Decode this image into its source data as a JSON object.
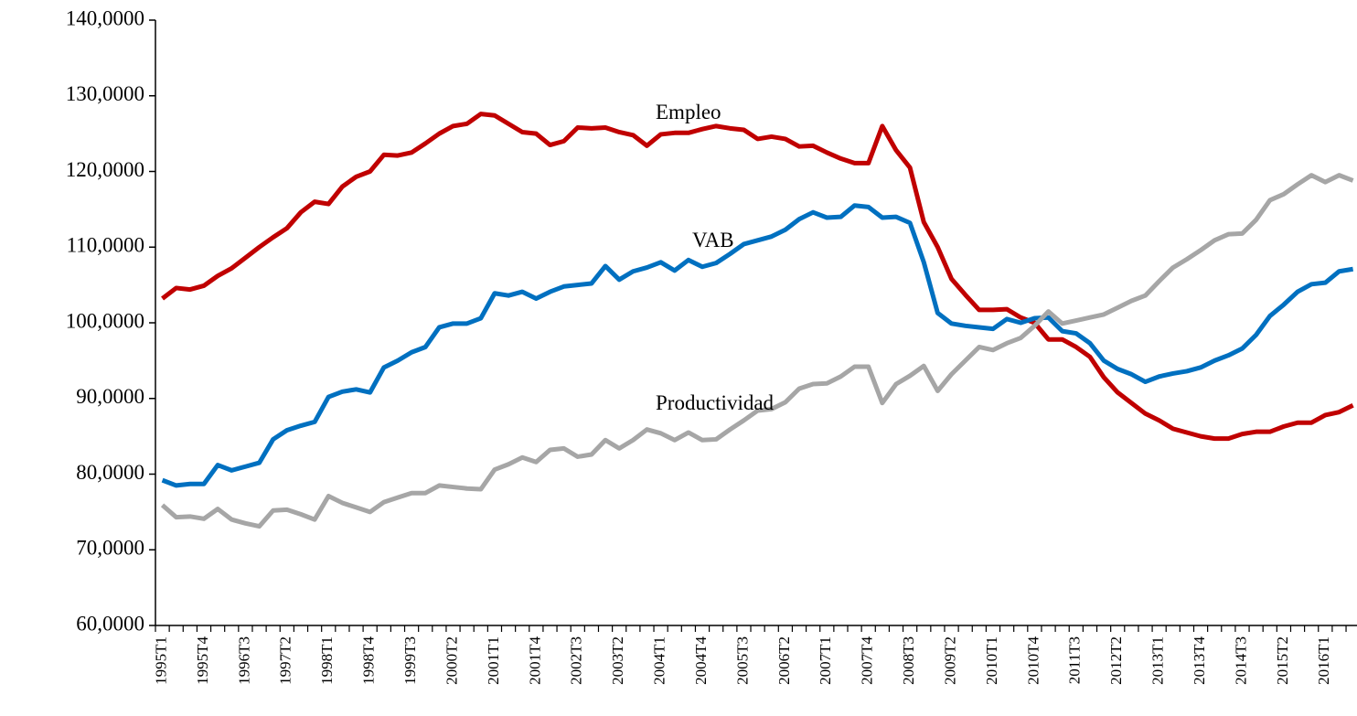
{
  "chart_data": {
    "type": "line",
    "categories": [
      "1995T1",
      null,
      null,
      "1995T4",
      null,
      null,
      "1996T3",
      null,
      null,
      "1997T2",
      null,
      null,
      "1998T1",
      null,
      null,
      "1998T4",
      null,
      null,
      "1999T3",
      null,
      null,
      "2000T2",
      null,
      null,
      "2001T1",
      null,
      null,
      "2001T4",
      null,
      null,
      "2002T3",
      null,
      null,
      "2003T2",
      null,
      null,
      "2004T1",
      null,
      null,
      "2004T4",
      null,
      null,
      "2005T3",
      null,
      null,
      "2006T2",
      null,
      null,
      "2007T1",
      null,
      null,
      "2007T4",
      null,
      null,
      "2008T3",
      null,
      null,
      "2009T2",
      null,
      null,
      "2010T1",
      null,
      null,
      "2010T4",
      null,
      null,
      "2011T3",
      null,
      null,
      "2012T2",
      null,
      null,
      "2013T1",
      null,
      null,
      "2013T4",
      null,
      null,
      "2014T3",
      null,
      null,
      "2015T2",
      null,
      null,
      "2016T1",
      null,
      null
    ],
    "series": [
      {
        "name": "Empleo",
        "color": "#c00000",
        "values": [
          103.2,
          104.6,
          104.4,
          104.9,
          106.2,
          107.2,
          108.6,
          110,
          111.3,
          112.5,
          114.6,
          116,
          115.7,
          118,
          119.3,
          120,
          122.2,
          122.1,
          122.5,
          123.7,
          125,
          126,
          126.3,
          127.6,
          127.4,
          126.3,
          125.2,
          125,
          123.5,
          124,
          125.8,
          125.7,
          125.8,
          125.2,
          124.8,
          123.4,
          124.9,
          125.1,
          125.1,
          125.6,
          126,
          125.7,
          125.5,
          124.3,
          124.6,
          124.3,
          123.3,
          123.4,
          122.5,
          121.7,
          121.1,
          121.1,
          126,
          122.8,
          120.5,
          113.3,
          110,
          105.8,
          103.7,
          101.7,
          101.7,
          101.8,
          100.7,
          100,
          97.8,
          97.8,
          96.8,
          95.5,
          92.8,
          90.8,
          89.4,
          88,
          87.1,
          86,
          85.5,
          85,
          84.7,
          84.7,
          85.3,
          85.6,
          85.6,
          86.3,
          86.8,
          86.8,
          87.8,
          88.2,
          89.1
        ]
      },
      {
        "name": "VAB",
        "color": "#0070c0",
        "values": [
          79.2,
          78.5,
          78.7,
          78.7,
          81.2,
          80.5,
          81,
          81.5,
          84.6,
          85.8,
          86.4,
          86.9,
          90.2,
          90.9,
          91.2,
          90.8,
          94.1,
          95,
          96.1,
          96.8,
          99.4,
          99.9,
          99.9,
          100.6,
          103.9,
          103.6,
          104.1,
          103.2,
          104.1,
          104.8,
          105,
          105.2,
          107.5,
          105.7,
          106.8,
          107.3,
          108,
          106.9,
          108.3,
          107.4,
          107.9,
          109.1,
          110.4,
          110.9,
          111.4,
          112.3,
          113.7,
          114.6,
          113.9,
          114,
          115.5,
          115.3,
          113.9,
          114,
          113.2,
          108,
          101.3,
          99.9,
          99.6,
          99.4,
          99.2,
          100.5,
          100,
          100.6,
          100.7,
          98.9,
          98.6,
          97.3,
          95,
          93.9,
          93.2,
          92.2,
          92.9,
          93.3,
          93.6,
          94.1,
          95,
          95.7,
          96.6,
          98.4,
          100.9,
          102.4,
          104.1,
          105.1,
          105.3,
          106.8,
          107.1
        ]
      },
      {
        "name": "Productividad",
        "color": "#a6a6a6",
        "values": [
          75.9,
          74.3,
          74.4,
          74.1,
          75.4,
          74,
          73.5,
          73.1,
          75.2,
          75.3,
          74.7,
          74,
          77.1,
          76.2,
          75.6,
          75,
          76.3,
          76.9,
          77.5,
          77.5,
          78.5,
          78.3,
          78.1,
          78,
          80.6,
          81.3,
          82.2,
          81.6,
          83.2,
          83.4,
          82.3,
          82.6,
          84.5,
          83.4,
          84.5,
          85.9,
          85.4,
          84.5,
          85.5,
          84.5,
          84.6,
          85.9,
          87.1,
          88.4,
          88.6,
          89.5,
          91.3,
          91.9,
          92,
          92.9,
          94.2,
          94.2,
          89.4,
          91.9,
          93,
          94.3,
          91,
          93.2,
          95,
          96.8,
          96.4,
          97.3,
          98,
          99.6,
          101.5,
          99.9,
          100.3,
          100.7,
          101.1,
          102,
          102.9,
          103.6,
          105.5,
          107.3,
          108.4,
          109.6,
          110.9,
          111.7,
          111.8,
          113.6,
          116.2,
          117,
          118.3,
          119.5,
          118.6,
          119.5,
          118.8
        ]
      }
    ],
    "ylim": [
      60,
      140
    ],
    "yticks": [
      {
        "value": 60,
        "label": "60,0000"
      },
      {
        "value": 70,
        "label": "70,0000"
      },
      {
        "value": 80,
        "label": "80,0000"
      },
      {
        "value": 90,
        "label": "90,0000"
      },
      {
        "value": 100,
        "label": "100,0000"
      },
      {
        "value": 110,
        "label": "110,0000"
      },
      {
        "value": 120,
        "label": "120,0000"
      },
      {
        "value": 130,
        "label": "130,0000"
      },
      {
        "value": 140,
        "label": "140,0000"
      }
    ],
    "grid": false
  }
}
